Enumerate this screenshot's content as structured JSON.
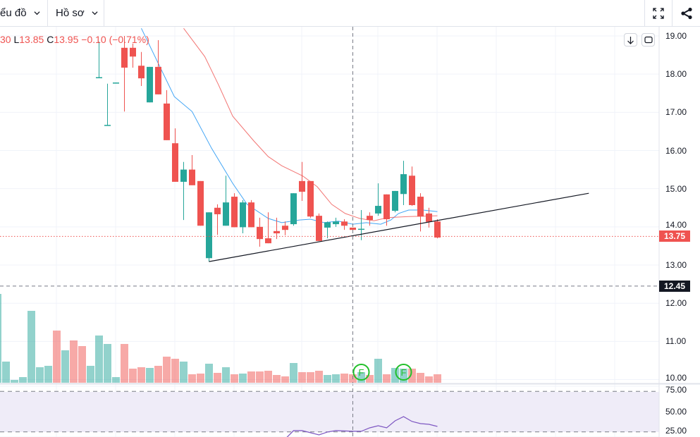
{
  "toolbar": {
    "chart_menu_label": "ểu đồ",
    "profile_menu_label": "Hồ sơ",
    "fullscreen_icon": "fullscreen-icon",
    "share_icon": "share-icon"
  },
  "legend": {
    "high_partial": "30",
    "low_key": "L",
    "low_value": "13.85",
    "close_key": "C",
    "close_value": "13.95",
    "change": "−0.10 (−0.71%)"
  },
  "colors": {
    "up": "#26a69a",
    "down": "#ef5350",
    "ma_fast": "#42a5f5",
    "ma_slow": "#ef5350",
    "rsi": "#7e57c2",
    "rsi_band": "#efecf8"
  },
  "price_axis": [
    "19.00",
    "18.00",
    "17.00",
    "16.00",
    "15.00",
    "14.00",
    "13.00",
    "12.00",
    "11.00",
    "10.00"
  ],
  "rsi_axis": [
    "75.00",
    "50.00",
    "25.00"
  ],
  "last_price_label": "13.75",
  "crosshair_price_label": "12.45",
  "event_marker_label": "F",
  "chart_data": {
    "type": "candlestick",
    "first_index": 11,
    "candles_ohlc": [
      [
        17.9,
        18.85,
        17.9,
        17.92
      ],
      [
        16.65,
        17.75,
        16.65,
        16.67
      ],
      [
        17.76,
        17.78,
        17.76,
        17.78
      ],
      [
        18.69,
        19.0,
        17.02,
        18.17
      ],
      [
        18.69,
        18.8,
        18.17,
        18.46
      ],
      [
        18.22,
        18.58,
        17.69,
        17.89
      ],
      [
        17.26,
        18.19,
        17.26,
        18.19
      ],
      [
        18.19,
        18.89,
        17.47,
        17.47
      ],
      [
        17.23,
        17.58,
        16.27,
        16.27
      ],
      [
        16.19,
        16.58,
        15.18,
        15.18
      ],
      [
        15.18,
        15.7,
        14.18,
        15.5
      ],
      [
        15.5,
        15.88,
        15.09,
        15.09
      ],
      [
        15.2,
        15.2,
        14.03,
        14.03
      ],
      [
        13.18,
        14.38,
        13.09,
        14.38
      ],
      [
        14.5,
        14.59,
        13.79,
        14.33
      ],
      [
        14.03,
        15.34,
        14.03,
        14.64
      ],
      [
        14.79,
        14.88,
        13.99,
        13.99
      ],
      [
        13.99,
        14.7,
        13.83,
        14.64
      ],
      [
        14.64,
        14.7,
        13.99,
        13.99
      ],
      [
        14.0,
        14.24,
        13.48,
        13.68
      ],
      [
        13.7,
        14.38,
        13.57,
        13.57
      ],
      [
        13.89,
        14.24,
        13.68,
        13.83
      ],
      [
        14.03,
        14.14,
        13.78,
        13.92
      ],
      [
        14.07,
        14.88,
        14.03,
        14.88
      ],
      [
        15.2,
        15.7,
        14.68,
        14.92
      ],
      [
        15.2,
        15.2,
        14.24,
        14.27
      ],
      [
        14.29,
        14.35,
        13.63,
        13.63
      ],
      [
        13.98,
        14.14,
        13.7,
        14.12
      ],
      [
        14.07,
        14.24,
        14.0,
        14.14
      ],
      [
        14.14,
        14.2,
        13.92,
        14.03
      ],
      [
        13.98,
        13.98,
        13.92,
        13.92
      ],
      [
        13.93,
        14.44,
        13.65,
        13.95
      ],
      [
        14.29,
        14.38,
        14.03,
        14.18
      ],
      [
        14.35,
        15.14,
        14.29,
        14.55
      ],
      [
        14.85,
        14.85,
        14.03,
        14.2
      ],
      [
        14.42,
        14.94,
        14.38,
        14.94
      ],
      [
        14.86,
        15.73,
        14.57,
        15.38
      ],
      [
        15.34,
        15.58,
        14.55,
        14.57
      ],
      [
        14.79,
        14.88,
        13.88,
        14.27
      ],
      [
        14.35,
        14.5,
        13.98,
        14.13
      ],
      [
        14.14,
        14.2,
        13.7,
        13.72
      ]
    ],
    "volume_first_index": -1,
    "volume": [
      [
        126,
        "up"
      ],
      [
        30,
        "up"
      ],
      [
        4,
        "up"
      ],
      [
        8,
        "up"
      ],
      [
        102,
        "up"
      ],
      [
        22,
        "up"
      ],
      [
        24,
        "up"
      ],
      [
        74,
        "down"
      ],
      [
        46,
        "up"
      ],
      [
        60,
        "down"
      ],
      [
        52,
        "down"
      ],
      [
        24,
        "up"
      ],
      [
        67,
        "up"
      ],
      [
        55,
        "up"
      ],
      [
        8,
        "up"
      ],
      [
        55,
        "down"
      ],
      [
        20,
        "down"
      ],
      [
        22,
        "down"
      ],
      [
        21,
        "up"
      ],
      [
        24,
        "down"
      ],
      [
        37,
        "down"
      ],
      [
        34,
        "down"
      ],
      [
        30,
        "up"
      ],
      [
        12,
        "down"
      ],
      [
        13,
        "down"
      ],
      [
        27,
        "up"
      ],
      [
        14,
        "down"
      ],
      [
        22,
        "up"
      ],
      [
        12,
        "down"
      ],
      [
        13,
        "up"
      ],
      [
        16,
        "down"
      ],
      [
        16,
        "down"
      ],
      [
        17,
        "down"
      ],
      [
        11,
        "down"
      ],
      [
        9,
        "down"
      ],
      [
        28,
        "up"
      ],
      [
        15,
        "down"
      ],
      [
        15,
        "down"
      ],
      [
        17,
        "down"
      ],
      [
        11,
        "up"
      ],
      [
        12,
        "up"
      ],
      [
        13,
        "down"
      ],
      [
        12,
        "down"
      ],
      [
        15,
        "up"
      ],
      [
        11,
        "down"
      ],
      [
        34,
        "up"
      ],
      [
        12,
        "down"
      ],
      [
        21,
        "up"
      ],
      [
        20,
        "up"
      ],
      [
        20,
        "down"
      ],
      [
        14,
        "down"
      ],
      [
        9,
        "down"
      ],
      [
        12,
        "down"
      ]
    ],
    "ma_fast": [
      [
        16,
        19.2
      ],
      [
        19.9,
        17.41
      ],
      [
        22,
        17.02
      ],
      [
        24.3,
        16.06
      ],
      [
        26.8,
        15.14
      ],
      [
        28.5,
        14.59
      ],
      [
        31,
        14.22
      ],
      [
        32.6,
        14.11
      ],
      [
        34.7,
        14.18
      ],
      [
        36,
        14.2
      ],
      [
        37.6,
        14.11
      ],
      [
        39.3,
        14.15
      ],
      [
        41,
        14.07
      ],
      [
        42.6,
        14.11
      ],
      [
        44.3,
        14.07
      ],
      [
        45.5,
        14.18
      ],
      [
        46.4,
        14.35
      ],
      [
        47.6,
        14.44
      ],
      [
        49.3,
        14.44
      ],
      [
        51,
        14.4
      ]
    ],
    "ma_slow": [
      [
        21,
        19.2
      ],
      [
        23.5,
        18.46
      ],
      [
        25.1,
        17.73
      ],
      [
        26.8,
        16.9
      ],
      [
        29.3,
        16.25
      ],
      [
        31,
        15.84
      ],
      [
        32.6,
        15.6
      ],
      [
        35.1,
        15.33
      ],
      [
        36.8,
        15.05
      ],
      [
        38.5,
        14.59
      ],
      [
        40.1,
        14.35
      ],
      [
        41.8,
        14.22
      ],
      [
        43.5,
        14.16
      ],
      [
        45.1,
        14.24
      ],
      [
        47.6,
        14.27
      ],
      [
        51,
        14.29
      ]
    ],
    "trendline": [
      [
        24.0,
        13.09
      ],
      [
        68.9,
        14.88
      ]
    ],
    "rsi": [
      [
        33,
        23
      ],
      [
        34,
        31.3
      ],
      [
        35,
        31.3
      ],
      [
        37,
        27.1
      ],
      [
        38,
        29.9
      ],
      [
        39,
        31.3
      ],
      [
        41,
        30.6
      ],
      [
        42,
        30.6
      ],
      [
        43,
        34
      ],
      [
        44,
        36.1
      ],
      [
        45,
        34
      ],
      [
        46,
        41
      ],
      [
        47,
        45.1
      ],
      [
        48,
        40.3
      ],
      [
        49,
        38.2
      ],
      [
        50,
        37.5
      ],
      [
        51,
        35.4
      ]
    ],
    "rsi_levels": [
      70,
      30
    ],
    "events": [
      42,
      47
    ],
    "last_price": 13.75,
    "crosshair": {
      "index": 41,
      "price": 12.45
    },
    "price_range": [
      10,
      19
    ],
    "rsi_range": [
      25,
      75
    ]
  }
}
